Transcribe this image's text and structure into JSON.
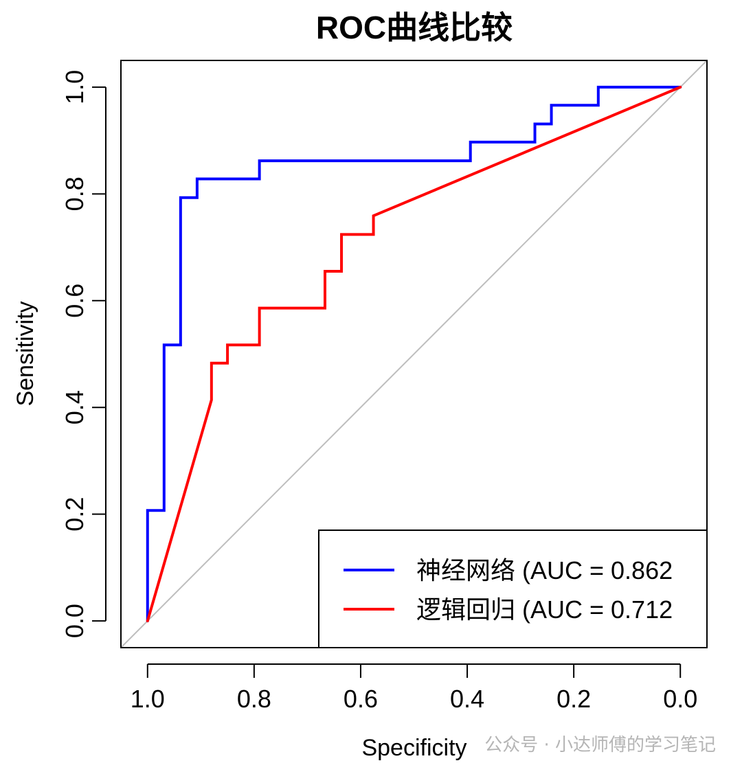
{
  "chart_data": {
    "type": "line",
    "title": "ROC曲线比较",
    "xlabel": "Specificity",
    "ylabel": "Sensitivity",
    "xlim": [
      1.05,
      -0.05
    ],
    "ylim": [
      -0.05,
      1.05
    ],
    "x_ticks": [
      1.0,
      0.8,
      0.6,
      0.4,
      0.2,
      0.0
    ],
    "x_tick_labels": [
      "1.0",
      "0.8",
      "0.6",
      "0.4",
      "0.2",
      "0.0"
    ],
    "y_ticks": [
      0.0,
      0.2,
      0.4,
      0.6,
      0.8,
      1.0
    ],
    "y_tick_labels": [
      "0.0",
      "0.2",
      "0.4",
      "0.6",
      "0.8",
      "1.0"
    ],
    "x_reversed": true,
    "grid": false,
    "legend_position": "bottom-right",
    "reference_line": {
      "from": [
        1.0,
        0.0
      ],
      "to": [
        0.0,
        1.0
      ],
      "color": "#bebebe"
    },
    "series": [
      {
        "name": "神经网络 (AUC = 0.862",
        "color": "#0000ff",
        "points": [
          [
            1.0,
            0.0
          ],
          [
            1.0,
            0.207
          ],
          [
            0.969,
            0.207
          ],
          [
            0.969,
            0.517
          ],
          [
            0.938,
            0.517
          ],
          [
            0.938,
            0.793
          ],
          [
            0.907,
            0.793
          ],
          [
            0.907,
            0.828
          ],
          [
            0.79,
            0.828
          ],
          [
            0.79,
            0.862
          ],
          [
            0.394,
            0.862
          ],
          [
            0.394,
            0.897
          ],
          [
            0.273,
            0.897
          ],
          [
            0.273,
            0.931
          ],
          [
            0.242,
            0.931
          ],
          [
            0.242,
            0.966
          ],
          [
            0.154,
            0.966
          ],
          [
            0.154,
            1.0
          ],
          [
            0.0,
            1.0
          ]
        ]
      },
      {
        "name": "逻辑回归 (AUC = 0.712",
        "color": "#ff0000",
        "points": [
          [
            1.0,
            0.0
          ],
          [
            0.88,
            0.414
          ],
          [
            0.88,
            0.483
          ],
          [
            0.85,
            0.483
          ],
          [
            0.85,
            0.517
          ],
          [
            0.79,
            0.517
          ],
          [
            0.79,
            0.586
          ],
          [
            0.667,
            0.586
          ],
          [
            0.667,
            0.655
          ],
          [
            0.636,
            0.655
          ],
          [
            0.636,
            0.724
          ],
          [
            0.576,
            0.724
          ],
          [
            0.576,
            0.759
          ],
          [
            0.0,
            1.0
          ]
        ]
      }
    ]
  },
  "watermark": "公众号 · 小达师傅的学习笔记"
}
